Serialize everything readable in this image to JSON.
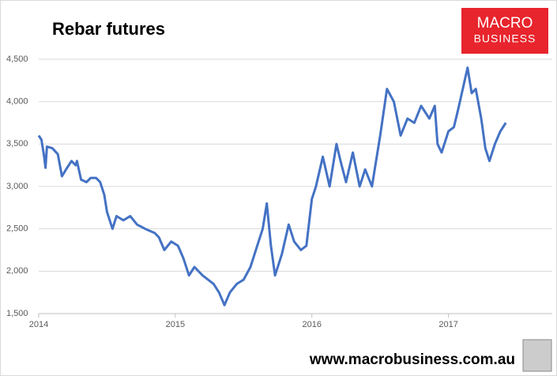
{
  "chart_data": {
    "type": "line",
    "title": "Rebar futures",
    "x": [
      2014.0,
      2014.02,
      2014.04,
      2014.05,
      2014.06,
      2014.1,
      2014.14,
      2014.17,
      2014.2,
      2014.24,
      2014.27,
      2014.28,
      2014.31,
      2014.35,
      2014.38,
      2014.42,
      2014.45,
      2014.48,
      2014.5,
      2014.54,
      2014.57,
      2014.62,
      2014.67,
      2014.72,
      2014.78,
      2014.85,
      2014.88,
      2014.92,
      2014.97,
      2015.02,
      2015.06,
      2015.1,
      2015.14,
      2015.2,
      2015.28,
      2015.32,
      2015.36,
      2015.4,
      2015.45,
      2015.5,
      2015.55,
      2015.6,
      2015.64,
      2015.67,
      2015.7,
      2015.73,
      2015.78,
      2015.83,
      2015.87,
      2015.92,
      2015.96,
      2016.0,
      2016.03,
      2016.08,
      2016.13,
      2016.18,
      2016.21,
      2016.25,
      2016.3,
      2016.35,
      2016.39,
      2016.44,
      2016.5,
      2016.55,
      2016.6,
      2016.65,
      2016.7,
      2016.75,
      2016.8,
      2016.86,
      2016.9,
      2016.92,
      2016.95,
      2017.0,
      2017.04,
      2017.07,
      2017.14,
      2017.17,
      2017.2,
      2017.24,
      2017.27,
      2017.3,
      2017.34,
      2017.38,
      2017.42
    ],
    "series": [
      {
        "name": "Rebar futures",
        "color": "#4472c4",
        "values": [
          3600,
          3550,
          3350,
          3220,
          3470,
          3450,
          3380,
          3120,
          3200,
          3300,
          3250,
          3300,
          3080,
          3050,
          3100,
          3100,
          3050,
          2900,
          2700,
          2500,
          2650,
          2600,
          2650,
          2550,
          2500,
          2450,
          2400,
          2250,
          2350,
          2300,
          2150,
          1950,
          2050,
          1950,
          1850,
          1750,
          1600,
          1750,
          1850,
          1900,
          2050,
          2300,
          2500,
          2800,
          2300,
          1950,
          2200,
          2550,
          2350,
          2250,
          2300,
          2850,
          3000,
          3350,
          3000,
          3500,
          3300,
          3050,
          3400,
          3000,
          3200,
          3000,
          3600,
          4150,
          4000,
          3600,
          3800,
          3750,
          3950,
          3800,
          3950,
          3500,
          3400,
          3650,
          3700,
          3900,
          4400,
          4100,
          4150,
          3800,
          3450,
          3300,
          3500,
          3650,
          3750
        ]
      }
    ],
    "xlim": [
      2014,
      2017.76
    ],
    "xticks": [
      2014,
      2015,
      2016,
      2017
    ],
    "ylim": [
      1500,
      4500
    ],
    "yticks": [
      {
        "value": 1500,
        "label": "1,500"
      },
      {
        "value": 2000,
        "label": "2,000"
      },
      {
        "value": 2500,
        "label": "2,500"
      },
      {
        "value": 3000,
        "label": "3,000"
      },
      {
        "value": 3500,
        "label": "3,500"
      },
      {
        "value": 4000,
        "label": "4,000"
      },
      {
        "value": 4500,
        "label": "4,500"
      }
    ],
    "grid": true
  },
  "logo": {
    "line1": "MACRO",
    "line2": "BUSINESS"
  },
  "footer": "www.macrobusiness.com.au"
}
